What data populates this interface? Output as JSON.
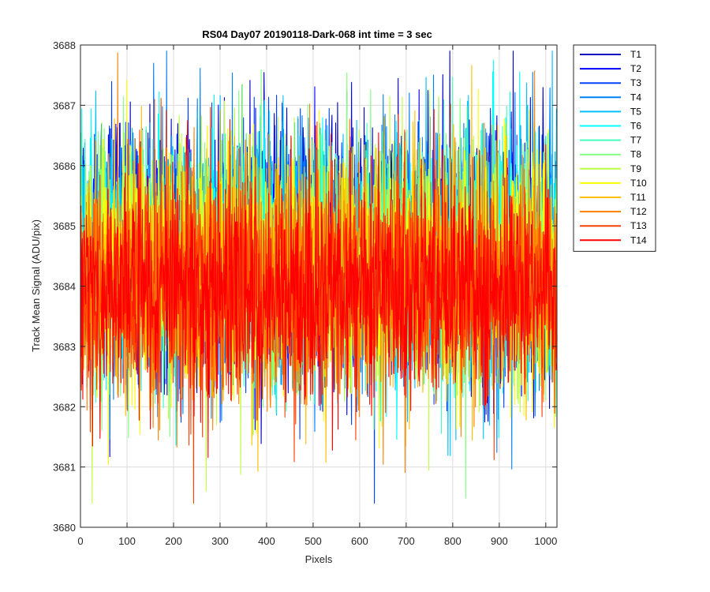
{
  "chart_data": {
    "type": "line",
    "title": "RS04 Day07 20190118-Dark-068 int time = 3 sec",
    "xlabel": "Pixels",
    "ylabel": "Track Mean Signal (ADU/pix)",
    "xlim": [
      0,
      1024
    ],
    "ylim": [
      3680,
      3688
    ],
    "xticks": [
      0,
      100,
      200,
      300,
      400,
      500,
      600,
      700,
      800,
      900,
      1000
    ],
    "yticks": [
      3680,
      3681,
      3682,
      3683,
      3684,
      3685,
      3686,
      3687,
      3688
    ],
    "grid": true,
    "legend_position": "outside-top-right",
    "num_points": 1024,
    "series": [
      {
        "name": "T1",
        "color": "#0000bf",
        "mean": 3684.6,
        "spread": 1.05
      },
      {
        "name": "T2",
        "color": "#0000ff",
        "mean": 3684.6,
        "spread": 1.05
      },
      {
        "name": "T3",
        "color": "#0040ff",
        "mean": 3684.55,
        "spread": 1.05
      },
      {
        "name": "T4",
        "color": "#0080ff",
        "mean": 3684.5,
        "spread": 1.05
      },
      {
        "name": "T5",
        "color": "#00bfff",
        "mean": 3684.5,
        "spread": 1.05
      },
      {
        "name": "T6",
        "color": "#00ffff",
        "mean": 3684.45,
        "spread": 1.0
      },
      {
        "name": "T7",
        "color": "#40ffbf",
        "mean": 3684.4,
        "spread": 1.0
      },
      {
        "name": "T8",
        "color": "#80ff80",
        "mean": 3684.4,
        "spread": 1.0
      },
      {
        "name": "T9",
        "color": "#bfff40",
        "mean": 3684.35,
        "spread": 1.0
      },
      {
        "name": "T10",
        "color": "#ffff00",
        "mean": 3684.3,
        "spread": 1.0
      },
      {
        "name": "T11",
        "color": "#ffbf00",
        "mean": 3684.2,
        "spread": 1.0
      },
      {
        "name": "T12",
        "color": "#ff8000",
        "mean": 3684.1,
        "spread": 0.95
      },
      {
        "name": "T13",
        "color": "#ff4000",
        "mean": 3684.0,
        "spread": 0.95
      },
      {
        "name": "T14",
        "color": "#ff0000",
        "mean": 3683.95,
        "spread": 0.9
      }
    ]
  }
}
